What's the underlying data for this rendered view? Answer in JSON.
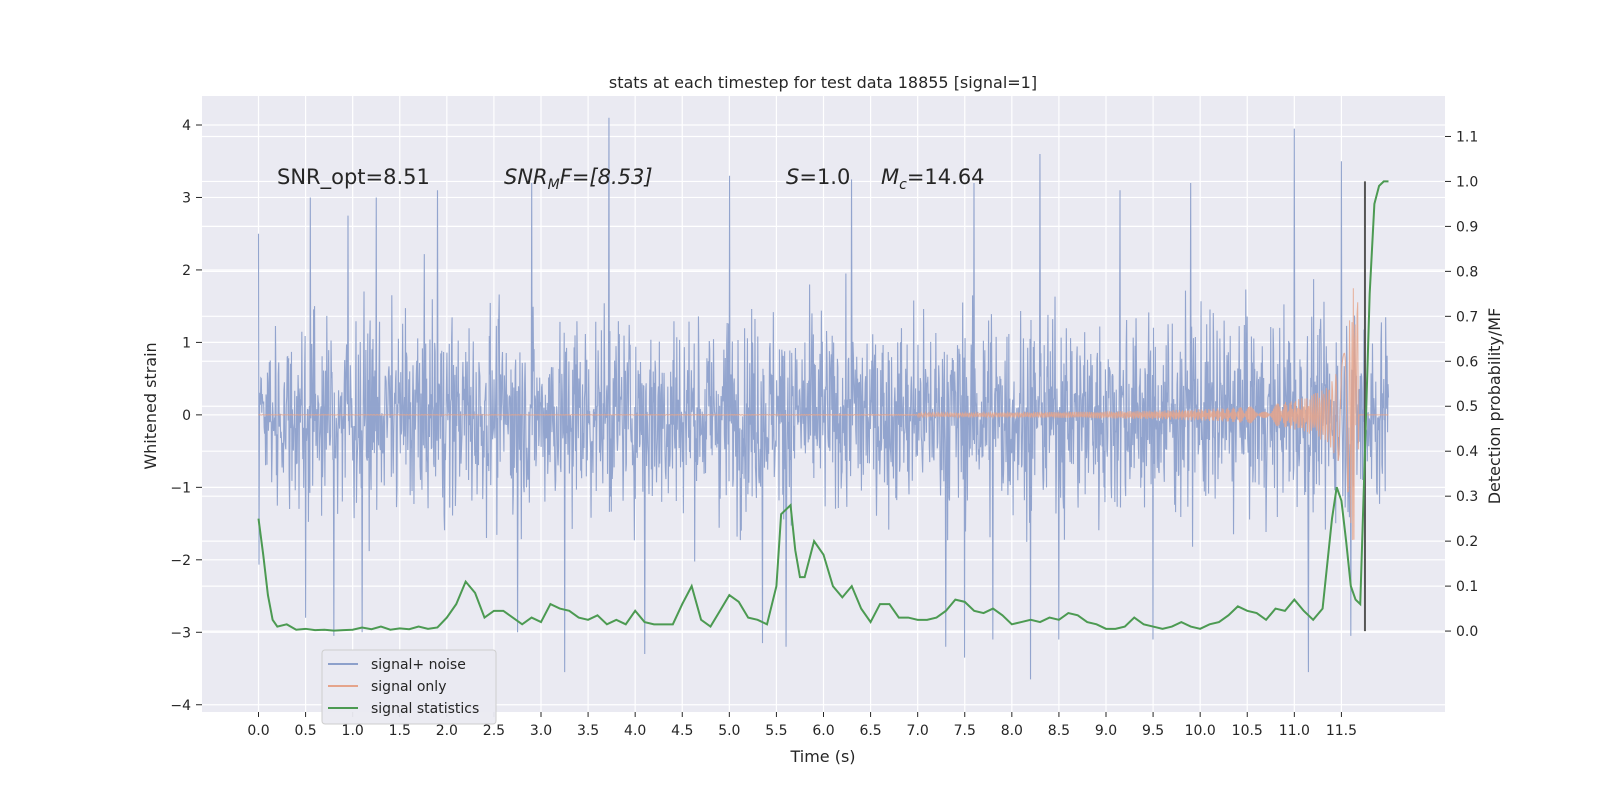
{
  "chart_data": {
    "type": "line",
    "title": "stats at each timestep for test data 18855 [signal=1]",
    "xlabel": "Time (s)",
    "ylabel": "Whitened strain",
    "y2label": "Detection probability/MF",
    "xlim": [
      -0.6,
      12.6
    ],
    "ylim": [
      -4.1,
      4.4
    ],
    "y2lim": [
      -0.18,
      1.19
    ],
    "x_ticks": [
      0.0,
      0.5,
      1.0,
      1.5,
      2.0,
      2.5,
      3.0,
      3.5,
      4.0,
      4.5,
      5.0,
      5.5,
      6.0,
      6.5,
      7.0,
      7.5,
      8.0,
      8.5,
      9.0,
      9.5,
      10.0,
      10.5,
      11.0,
      11.5
    ],
    "x_tick_labels": [
      "0.0",
      "0.5",
      "1.0",
      "1.5",
      "2.0",
      "2.5",
      "3.0",
      "3.5",
      "4.0",
      "4.5",
      "5.0",
      "5.5",
      "6.0",
      "6.5",
      "7.0",
      "7.5",
      "8.0",
      "8.5",
      "9.0",
      "9.5",
      "10.0",
      "10.5",
      "11.0",
      "11.5"
    ],
    "y_ticks": [
      4,
      3,
      2,
      1,
      0,
      -1,
      -2,
      -3,
      -4
    ],
    "y_tick_labels": [
      "4",
      "3",
      "2",
      "1",
      "0",
      "−1",
      "−2",
      "−3",
      "−4"
    ],
    "y2_ticks": [
      1.1,
      1.0,
      0.9,
      0.8,
      0.7,
      0.6,
      0.5,
      0.4,
      0.3,
      0.2,
      0.1,
      0.0
    ],
    "y2_tick_labels": [
      "1.1",
      "1.0",
      "0.9",
      "0.8",
      "0.7",
      "0.6",
      "0.5",
      "0.4",
      "0.3",
      "0.2",
      "0.1",
      "0.0"
    ],
    "grid": true,
    "legend": {
      "placement": "lower-left",
      "entries": [
        {
          "label": "signal+ noise",
          "color": "#8da0cb"
        },
        {
          "label": "signal only",
          "color": "#e5a48b"
        },
        {
          "label": "signal statistics",
          "color": "#4c9a52"
        }
      ]
    },
    "annotations": {
      "snr_opt": "SNR_opt=8.51",
      "snr_mf_main": "SNR",
      "snr_mf_sub": "M",
      "snr_mf_rest": "F=[8.53]",
      "s_main": "S",
      "s_rest": "=1.0",
      "mc_main": "M",
      "mc_sub": "c",
      "mc_rest": "=14.64"
    },
    "series": [
      {
        "name": "signal+ noise",
        "color": "#8da0cb",
        "x_range": [
          0.0,
          12.0
        ],
        "description_stats": {
          "typical_band": [
            -1.5,
            1.5
          ],
          "max": 4.1,
          "min": -3.7
        },
        "spikes_high": [
          [
            0.0,
            2.5
          ],
          [
            0.55,
            3.0
          ],
          [
            0.95,
            2.75
          ],
          [
            1.25,
            3.0
          ],
          [
            1.9,
            3.1
          ],
          [
            2.9,
            3.2
          ],
          [
            3.25,
            3.2
          ],
          [
            3.72,
            4.1
          ],
          [
            5.0,
            3.3
          ],
          [
            5.35,
            3.3
          ],
          [
            6.3,
            3.25
          ],
          [
            7.6,
            3.2
          ],
          [
            8.3,
            3.6
          ],
          [
            9.15,
            3.1
          ],
          [
            9.9,
            3.2
          ],
          [
            11.0,
            3.95
          ],
          [
            11.5,
            3.5
          ]
        ],
        "spikes_low": [
          [
            0.5,
            -2.8
          ],
          [
            0.8,
            -3.05
          ],
          [
            1.1,
            -3.0
          ],
          [
            2.75,
            -3.0
          ],
          [
            3.25,
            -3.55
          ],
          [
            4.1,
            -3.3
          ],
          [
            5.35,
            -3.15
          ],
          [
            5.6,
            -3.2
          ],
          [
            7.3,
            -3.2
          ],
          [
            7.5,
            -3.35
          ],
          [
            7.8,
            -3.1
          ],
          [
            8.2,
            -3.65
          ],
          [
            8.5,
            -3.1
          ],
          [
            9.5,
            -3.1
          ],
          [
            11.15,
            -3.55
          ],
          [
            11.6,
            -3.05
          ]
        ]
      },
      {
        "name": "signal only",
        "color": "#e5a48b",
        "description": "chirp; near zero until ~7.5 s, growing amplitude to ~±1.7 at merger ~11.68 s, then ~0"
      },
      {
        "name": "signal statistics",
        "color": "#4c9a52",
        "axis": "right",
        "x": [
          0.0,
          0.05,
          0.1,
          0.15,
          0.2,
          0.3,
          0.4,
          0.5,
          0.6,
          0.7,
          0.8,
          0.9,
          1.0,
          1.1,
          1.2,
          1.3,
          1.4,
          1.5,
          1.6,
          1.7,
          1.8,
          1.9,
          2.0,
          2.1,
          2.2,
          2.3,
          2.4,
          2.5,
          2.6,
          2.7,
          2.8,
          2.9,
          3.0,
          3.1,
          3.2,
          3.3,
          3.4,
          3.5,
          3.6,
          3.7,
          3.8,
          3.9,
          4.0,
          4.1,
          4.2,
          4.3,
          4.4,
          4.5,
          4.6,
          4.7,
          4.8,
          4.9,
          5.0,
          5.1,
          5.2,
          5.3,
          5.4,
          5.5,
          5.55,
          5.65,
          5.7,
          5.75,
          5.8,
          5.85,
          5.9,
          6.0,
          6.1,
          6.2,
          6.3,
          6.4,
          6.5,
          6.6,
          6.7,
          6.8,
          6.9,
          7.0,
          7.1,
          7.2,
          7.3,
          7.4,
          7.5,
          7.6,
          7.7,
          7.8,
          7.9,
          8.0,
          8.1,
          8.2,
          8.3,
          8.4,
          8.5,
          8.6,
          8.7,
          8.8,
          8.9,
          9.0,
          9.1,
          9.2,
          9.3,
          9.4,
          9.5,
          9.6,
          9.7,
          9.8,
          9.9,
          10.0,
          10.1,
          10.2,
          10.3,
          10.4,
          10.5,
          10.6,
          10.7,
          10.8,
          10.9,
          11.0,
          11.1,
          11.2,
          11.3,
          11.4,
          11.45,
          11.5,
          11.55,
          11.6,
          11.65,
          11.7,
          11.75,
          11.8,
          11.85,
          11.9,
          11.95,
          12.0
        ],
        "y": [
          0.25,
          0.17,
          0.08,
          0.025,
          0.01,
          0.015,
          0.003,
          0.005,
          0.002,
          0.003,
          0.001,
          0.002,
          0.003,
          0.008,
          0.004,
          0.01,
          0.003,
          0.006,
          0.004,
          0.01,
          0.005,
          0.008,
          0.03,
          0.06,
          0.11,
          0.085,
          0.03,
          0.045,
          0.045,
          0.03,
          0.015,
          0.03,
          0.02,
          0.06,
          0.05,
          0.045,
          0.03,
          0.025,
          0.035,
          0.015,
          0.025,
          0.015,
          0.045,
          0.02,
          0.015,
          0.015,
          0.015,
          0.06,
          0.1,
          0.025,
          0.01,
          0.045,
          0.08,
          0.065,
          0.03,
          0.025,
          0.015,
          0.1,
          0.26,
          0.28,
          0.18,
          0.12,
          0.12,
          0.16,
          0.2,
          0.17,
          0.1,
          0.075,
          0.1,
          0.05,
          0.02,
          0.06,
          0.06,
          0.03,
          0.03,
          0.025,
          0.025,
          0.03,
          0.045,
          0.07,
          0.065,
          0.045,
          0.04,
          0.05,
          0.035,
          0.015,
          0.02,
          0.025,
          0.02,
          0.03,
          0.025,
          0.04,
          0.035,
          0.02,
          0.015,
          0.005,
          0.005,
          0.01,
          0.03,
          0.015,
          0.01,
          0.005,
          0.01,
          0.02,
          0.01,
          0.005,
          0.015,
          0.02,
          0.035,
          0.055,
          0.045,
          0.04,
          0.025,
          0.05,
          0.045,
          0.07,
          0.045,
          0.025,
          0.05,
          0.25,
          0.32,
          0.29,
          0.2,
          0.1,
          0.07,
          0.06,
          0.4,
          0.75,
          0.95,
          0.99,
          1.0,
          1.0
        ]
      }
    ],
    "marker_line": {
      "x": 11.75,
      "color": "#555555"
    }
  }
}
